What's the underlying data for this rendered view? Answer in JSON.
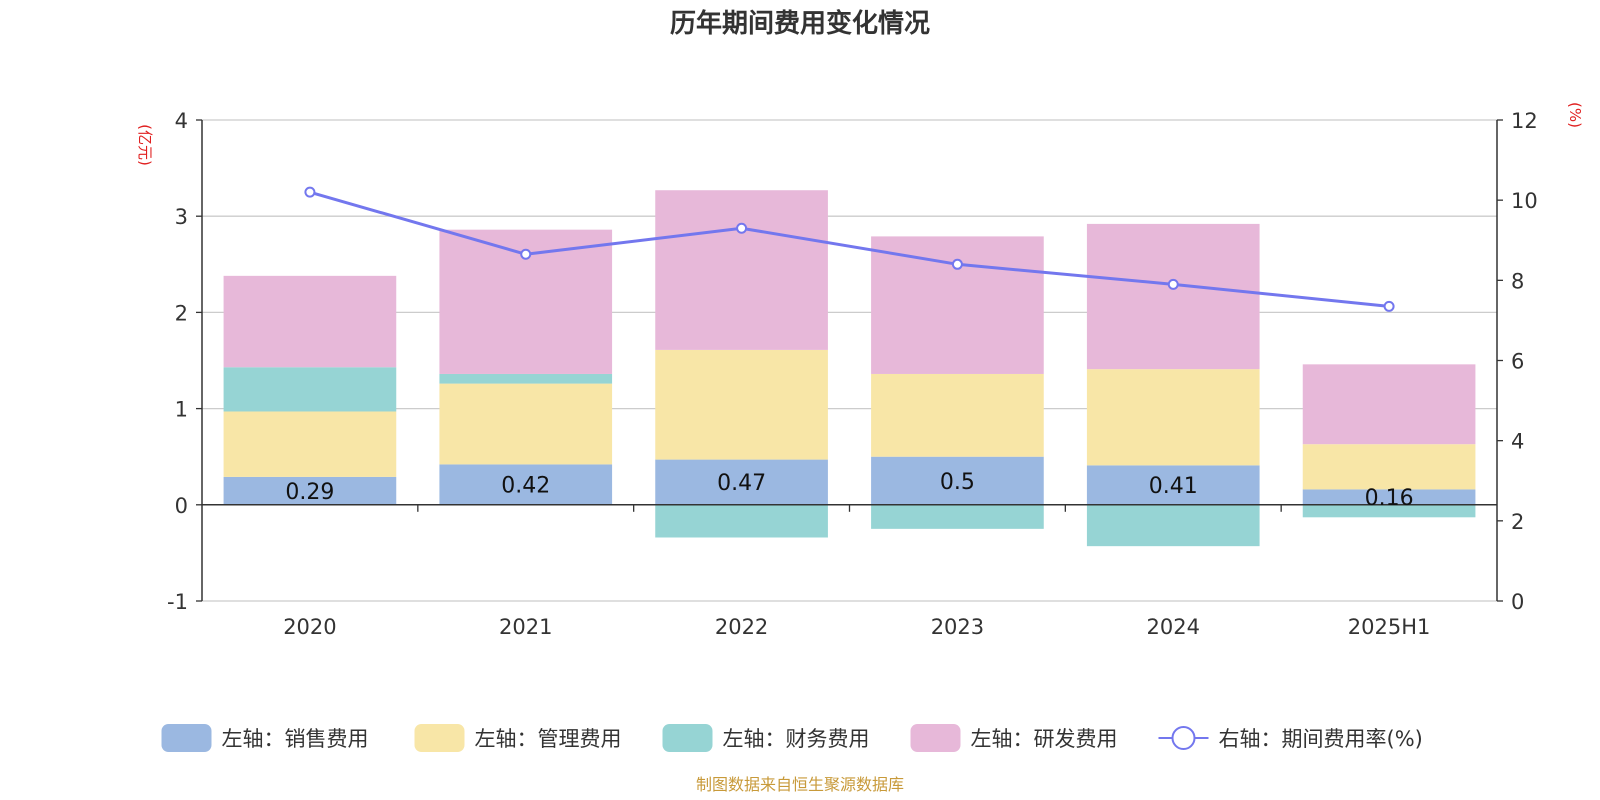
{
  "chart_data": {
    "type": "bar",
    "title": "历年期间费用变化情况",
    "categories": [
      "2020",
      "2021",
      "2022",
      "2023",
      "2024",
      "2025H1"
    ],
    "left_axis": {
      "unit": "(亿元)",
      "ylim": [
        -1,
        4
      ],
      "ticks": [
        "-1",
        "0",
        "1",
        "2",
        "3",
        "4"
      ]
    },
    "right_axis": {
      "unit": "(%)",
      "ylim": [
        0,
        12
      ],
      "ticks": [
        "0",
        "2",
        "4",
        "6",
        "8",
        "10",
        "12"
      ]
    },
    "series": [
      {
        "name": "左轴：销售费用",
        "type": "bar",
        "axis": "left",
        "color": "#9bb8e1",
        "values": [
          0.29,
          0.42,
          0.47,
          0.5,
          0.41,
          0.16
        ],
        "labels": [
          "0.29",
          "0.42",
          "0.47",
          "0.5",
          "0.41",
          "0.16"
        ]
      },
      {
        "name": "左轴：管理费用",
        "type": "bar",
        "axis": "left",
        "color": "#f8e6a7",
        "values": [
          0.68,
          0.84,
          1.14,
          0.86,
          1.0,
          0.47
        ]
      },
      {
        "name": "左轴：财务费用",
        "type": "bar",
        "axis": "left",
        "color": "#96d4d4",
        "values": [
          0.46,
          0.1,
          -0.34,
          -0.25,
          -0.43,
          -0.13
        ]
      },
      {
        "name": "左轴：研发费用",
        "type": "bar",
        "axis": "left",
        "color": "#e7b8d9",
        "values": [
          0.95,
          1.5,
          1.66,
          1.43,
          1.51,
          0.83
        ]
      },
      {
        "name": "右轴：期间费用率(%)",
        "type": "line",
        "axis": "right",
        "color": "#7377ee",
        "values": [
          10.2,
          8.65,
          9.3,
          8.4,
          7.9,
          7.35
        ]
      }
    ],
    "grid": true,
    "legend_position": "bottom"
  },
  "source_note": "制图数据来自恒生聚源数据库"
}
